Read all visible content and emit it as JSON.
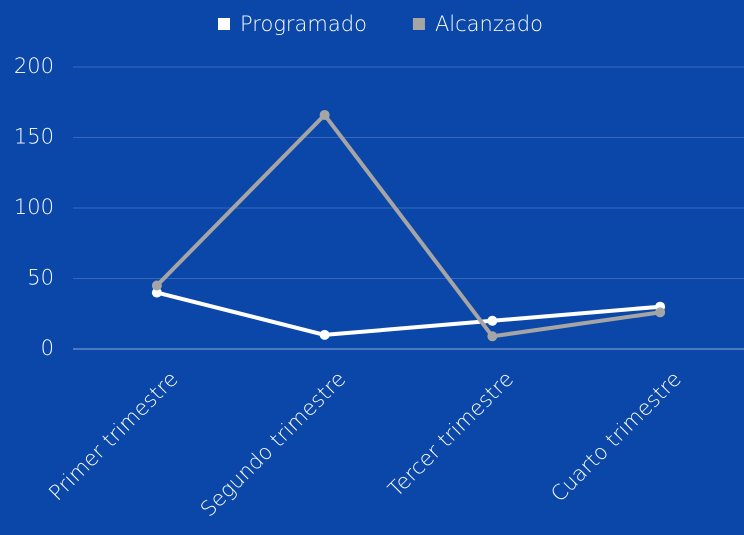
{
  "chart_data": {
    "type": "line",
    "categories": [
      "Primer trimestre",
      "Segundo trimestre",
      "Tercer trimestre",
      "Cuarto trimestre"
    ],
    "series": [
      {
        "name": "Programado",
        "color": "#ffffff",
        "values": [
          40,
          10,
          20,
          30
        ]
      },
      {
        "name": "Alcanzado",
        "color": "#a5a5a5",
        "values": [
          45,
          166,
          9,
          26
        ]
      }
    ],
    "ylim": [
      0,
      200
    ],
    "yticks": [
      0,
      50,
      100,
      150,
      200
    ],
    "grid": true,
    "legend": "top"
  }
}
